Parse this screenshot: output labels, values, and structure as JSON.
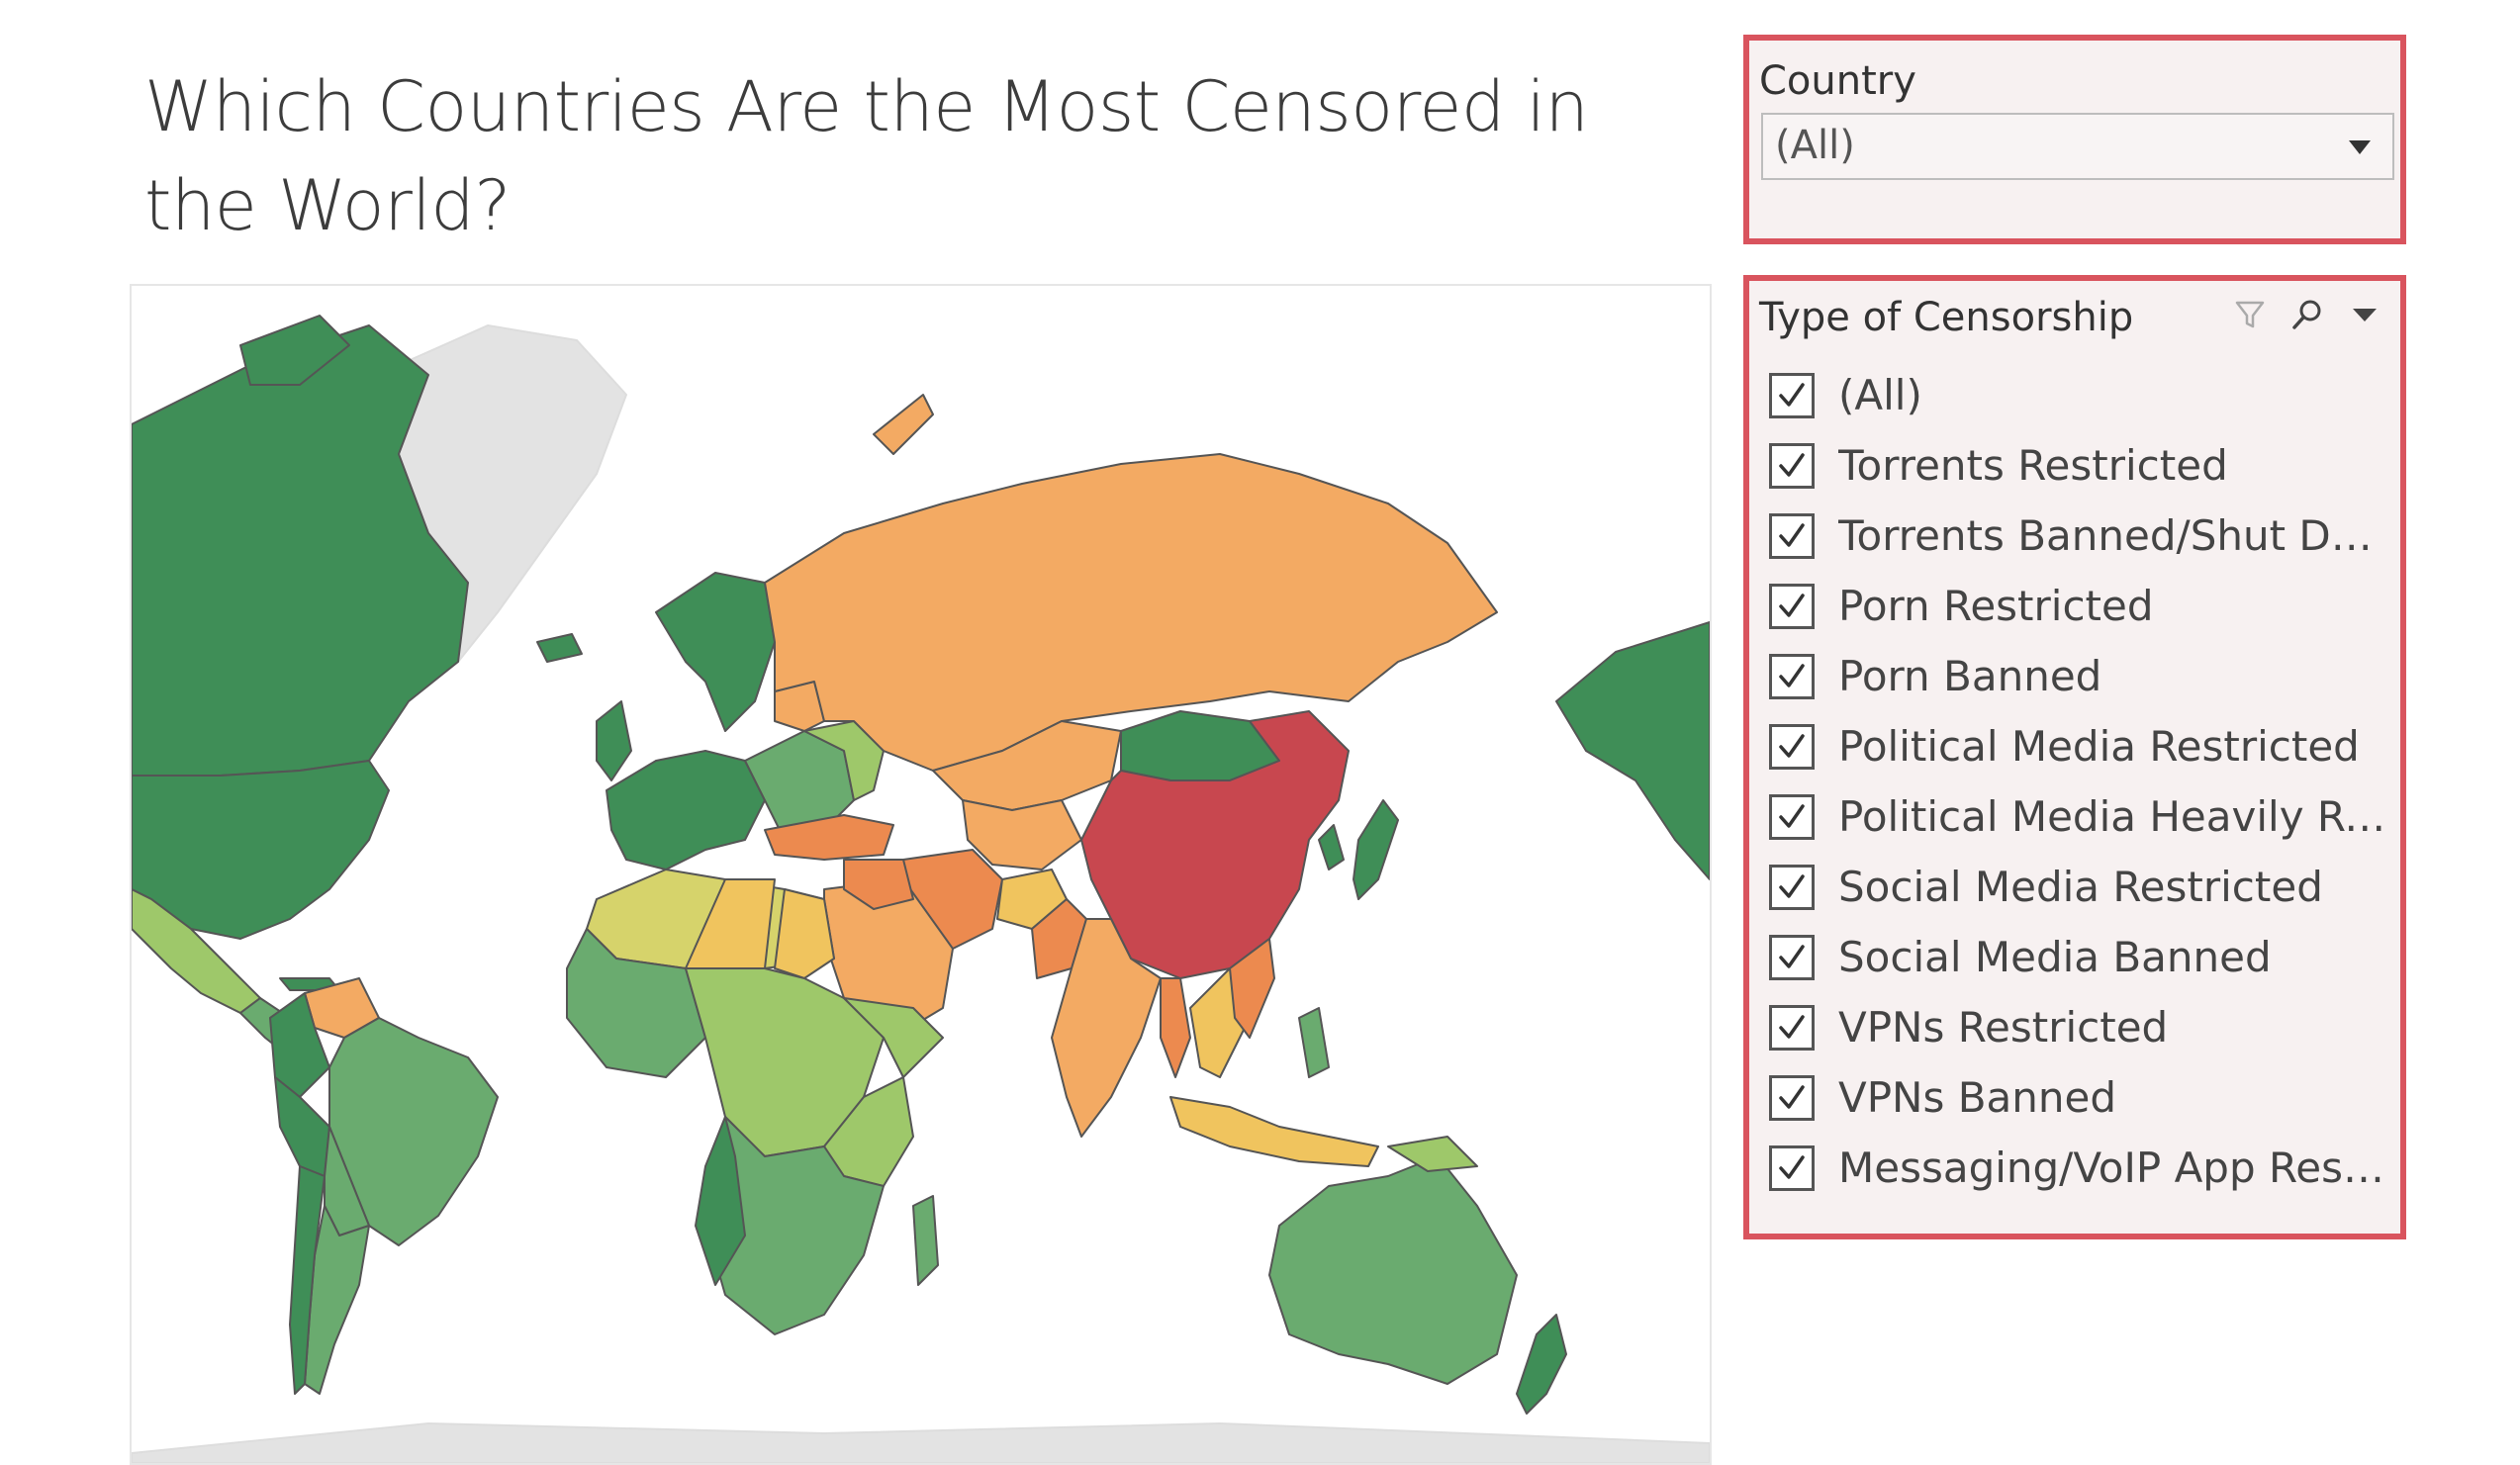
{
  "dashboard": {
    "title": "Which Countries Are the Most Censored in the World?"
  },
  "country_filter": {
    "label": "Country",
    "selected": "(All)",
    "icon": "chevron-down-icon"
  },
  "censorship_filter": {
    "label": "Type of Censorship",
    "icons": [
      "filter-icon",
      "search-icon",
      "menu-arrow-icon"
    ],
    "options": [
      {
        "label": "(All)",
        "checked": true
      },
      {
        "label": "Torrents Restricted",
        "checked": true
      },
      {
        "label": "Torrents Banned/Shut Down",
        "checked": true
      },
      {
        "label": "Porn Restricted",
        "checked": true
      },
      {
        "label": "Porn Banned",
        "checked": true
      },
      {
        "label": "Political Media Restricted",
        "checked": true
      },
      {
        "label": "Political Media Heavily Re...",
        "checked": true
      },
      {
        "label": "Social Media Restricted",
        "checked": true
      },
      {
        "label": "Social Media Banned",
        "checked": true
      },
      {
        "label": "VPNs Restricted",
        "checked": true
      },
      {
        "label": "VPNs Banned",
        "checked": true
      },
      {
        "label": "Messaging/VoIP App Restr...",
        "checked": true
      }
    ]
  },
  "map": {
    "colors": {
      "least": "#3f8e57",
      "low": "#6aab6f",
      "mid_low": "#9ec86a",
      "mid": "#d6d36b",
      "mid_high": "#f0c45e",
      "high": "#f3aa63",
      "higher": "#ec8a4f",
      "most": "#c8474f",
      "no_data": "#e3e3e3"
    }
  }
}
